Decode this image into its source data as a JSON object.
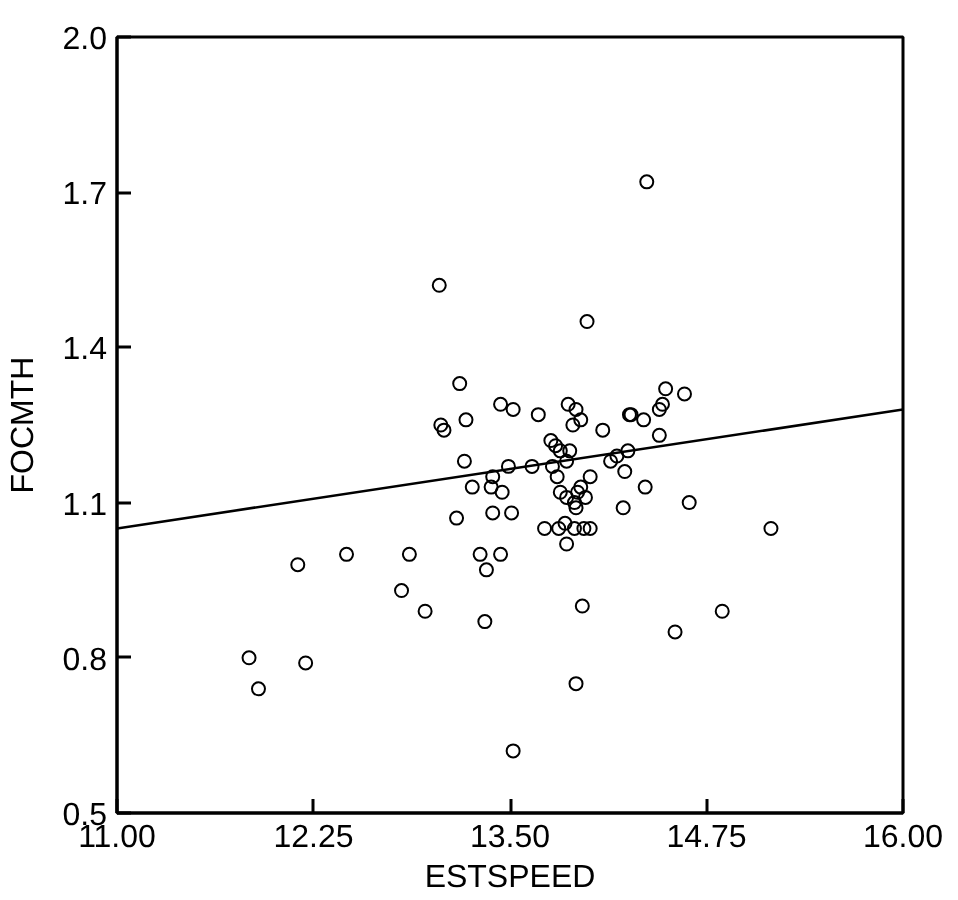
{
  "chart_data": {
    "type": "scatter",
    "xlabel": "ESTSPEED",
    "ylabel": "FOCMTH",
    "xlim": [
      11,
      16
    ],
    "ylim": [
      0.5,
      2.0
    ],
    "xticks": [
      {
        "value": 11,
        "label": "11.00"
      },
      {
        "value": 12.25,
        "label": "12.25"
      },
      {
        "value": 13.5,
        "label": "13.50"
      },
      {
        "value": 14.75,
        "label": "14.75"
      },
      {
        "value": 16,
        "label": "16.00"
      }
    ],
    "yticks": [
      {
        "value": 0.5,
        "label": "0.5"
      },
      {
        "value": 0.8,
        "label": "0.8"
      },
      {
        "value": 1.1,
        "label": "1.1"
      },
      {
        "value": 1.4,
        "label": "1.4"
      },
      {
        "value": 1.7,
        "label": "1.7"
      },
      {
        "value": 2.0,
        "label": "2.0"
      }
    ],
    "grid": false,
    "series": [
      {
        "color": "#000000",
        "marker": "circle",
        "x": [
          14.37,
          13.05,
          13.99,
          13.18,
          14.49,
          14.61,
          13.44,
          13.52,
          13.87,
          13.92,
          13.06,
          13.22,
          13.08,
          13.68,
          13.9,
          13.95,
          14.09,
          14.26,
          14.27,
          14.35,
          14.45,
          14.47,
          14.45,
          13.76,
          13.79,
          13.82,
          13.88,
          13.21,
          13.49,
          13.64,
          13.77,
          13.86,
          14.14,
          14.18,
          14.25,
          14.23,
          13.39,
          13.8,
          14.01,
          13.26,
          13.38,
          13.45,
          14.36,
          13.82,
          13.86,
          13.93,
          13.98,
          13.91,
          13.95,
          13.92,
          14.64,
          14.22,
          13.16,
          13.39,
          13.51,
          13.72,
          13.81,
          13.85,
          13.91,
          13.97,
          14.01,
          13.86,
          15.16,
          12.46,
          12.86,
          13.31,
          13.44,
          12.15,
          13.35,
          12.81,
          12.96,
          13.96,
          14.85,
          13.34,
          14.55,
          11.84,
          12.2,
          11.9,
          13.92,
          13.52
        ],
        "values": [
          1.72,
          1.52,
          1.45,
          1.33,
          1.32,
          1.31,
          1.29,
          1.28,
          1.29,
          1.28,
          1.25,
          1.26,
          1.24,
          1.27,
          1.25,
          1.26,
          1.24,
          1.27,
          1.27,
          1.26,
          1.28,
          1.29,
          1.23,
          1.22,
          1.21,
          1.2,
          1.2,
          1.18,
          1.17,
          1.17,
          1.17,
          1.18,
          1.18,
          1.19,
          1.2,
          1.16,
          1.15,
          1.15,
          1.15,
          1.13,
          1.13,
          1.12,
          1.13,
          1.12,
          1.11,
          1.12,
          1.11,
          1.1,
          1.13,
          1.09,
          1.1,
          1.09,
          1.07,
          1.08,
          1.08,
          1.05,
          1.05,
          1.06,
          1.05,
          1.05,
          1.05,
          1.02,
          1.05,
          1.0,
          1.0,
          1.0,
          1.0,
          0.98,
          0.97,
          0.93,
          0.89,
          0.9,
          0.89,
          0.87,
          0.85,
          0.8,
          0.79,
          0.74,
          0.75,
          0.62
        ]
      },
      {
        "type": "line",
        "color": "#000000",
        "marker": "none",
        "line_style": "solid",
        "x": [
          11,
          16
        ],
        "values": [
          1.05,
          1.28
        ]
      }
    ]
  }
}
